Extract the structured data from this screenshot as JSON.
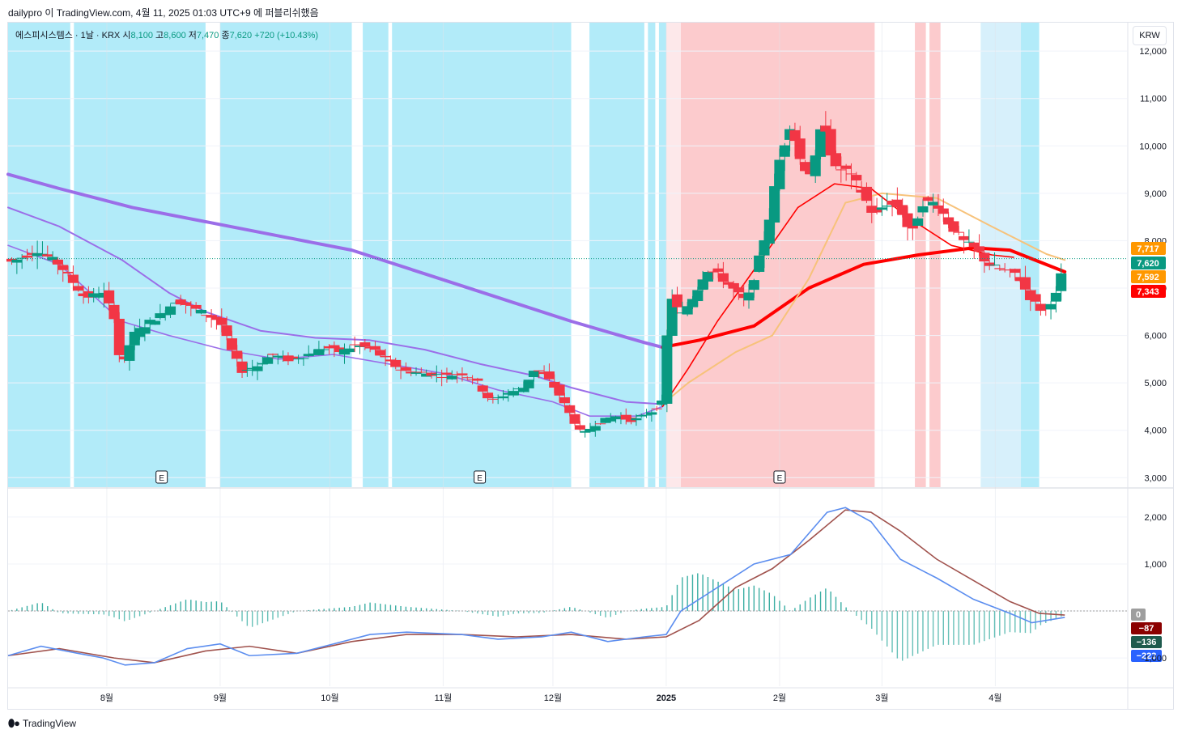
{
  "header": {
    "publisher": "dailypro",
    "text": "dailypro 이 TradingView.com, 4월 11, 2025 01:03 UTC+9 에 퍼블리쉬했음"
  },
  "legend": {
    "symbol": "에스피시스템스 · 1날 · KRX",
    "open_label": "시",
    "open": "8,100",
    "high_label": "고",
    "high": "8,600",
    "low_label": "저",
    "low": "7,470",
    "close_label": "종",
    "close": "7,620",
    "change": "+720 (+10.43%)"
  },
  "currency_button": "KRW",
  "footer": {
    "brand": "TradingView",
    "logo": "tradingview-logo-icon"
  },
  "colors": {
    "up": "#089981",
    "down": "#f23645",
    "bg_blue": "#b2ebf9",
    "bg_lightblue": "#d7f0fb",
    "bg_red": "#fccbcd",
    "bg_pink": "#fde8ea",
    "ma_purple": "#9b6ee8",
    "ma_red": "#ff0000",
    "ma_orange": "#f7c27a",
    "macd": "#5b8def",
    "signal": "#a0524d"
  },
  "chart_data": {
    "type": "candlestick",
    "symbol": "에스피시스템스",
    "x_ticks": [
      {
        "label": "8월",
        "day": 53
      },
      {
        "label": "9월",
        "day": 84
      },
      {
        "label": "10월",
        "day": 114
      },
      {
        "label": "11월",
        "day": 145
      },
      {
        "label": "12월",
        "day": 175
      },
      {
        "label": "2025",
        "day": 206
      },
      {
        "label": "2월",
        "day": 237
      },
      {
        "label": "3월",
        "day": 265
      },
      {
        "label": "4월",
        "day": 296
      }
    ],
    "x_range_days": [
      26,
      332
    ],
    "price_axis": {
      "ticks": [
        3000,
        4000,
        5000,
        6000,
        7000,
        8000,
        9000,
        10000,
        11000,
        12000
      ],
      "range": [
        2800,
        12600
      ]
    },
    "price_tick_labels": [
      "3,000",
      "4,000",
      "5,000",
      "6,000",
      "7,000",
      "8,000",
      "9,000",
      "10,000",
      "11,000",
      "12,000"
    ],
    "price_badges": [
      {
        "label": "7,717",
        "value": 7717,
        "color": "#ff9800"
      },
      {
        "label": "7,620",
        "value": 7620,
        "color": "#089981"
      },
      {
        "label": "7,592",
        "value": 7592,
        "color": "#ff9800"
      },
      {
        "label": "7,343",
        "value": 7343,
        "color": "#ff0000"
      }
    ],
    "last_price": 7620,
    "price_points": [
      [
        27,
        7550
      ],
      [
        34,
        7800
      ],
      [
        40,
        7500
      ],
      [
        47,
        6800
      ],
      [
        52,
        6900
      ],
      [
        55,
        6400
      ],
      [
        57,
        5250
      ],
      [
        60,
        6000
      ],
      [
        64,
        6250
      ],
      [
        68,
        6450
      ],
      [
        72,
        6750
      ],
      [
        76,
        6600
      ],
      [
        80,
        6450
      ],
      [
        84,
        6300
      ],
      [
        87,
        5700
      ],
      [
        90,
        5250
      ],
      [
        94,
        5350
      ],
      [
        98,
        5600
      ],
      [
        103,
        5480
      ],
      [
        108,
        5600
      ],
      [
        113,
        5750
      ],
      [
        117,
        5650
      ],
      [
        121,
        5800
      ],
      [
        126,
        5700
      ],
      [
        130,
        5450
      ],
      [
        134,
        5250
      ],
      [
        140,
        5200
      ],
      [
        146,
        5150
      ],
      [
        150,
        5200
      ],
      [
        154,
        5050
      ],
      [
        158,
        4600
      ],
      [
        163,
        4800
      ],
      [
        167,
        4900
      ],
      [
        170,
        5300
      ],
      [
        173,
        5150
      ],
      [
        176,
        4850
      ],
      [
        180,
        4300
      ],
      [
        183,
        3900
      ],
      [
        187,
        4150
      ],
      [
        192,
        4300
      ],
      [
        197,
        4200
      ],
      [
        202,
        4400
      ],
      [
        205,
        4600
      ],
      [
        207,
        6900
      ],
      [
        210,
        6400
      ],
      [
        214,
        6900
      ],
      [
        217,
        7400
      ],
      [
        220,
        7300
      ],
      [
        224,
        7000
      ],
      [
        228,
        6700
      ],
      [
        231,
        7500
      ],
      [
        234,
        8400
      ],
      [
        237,
        9700
      ],
      [
        240,
        10500
      ],
      [
        243,
        9600
      ],
      [
        246,
        9400
      ],
      [
        249,
        10600
      ],
      [
        252,
        9500
      ],
      [
        255,
        9500
      ],
      [
        259,
        9100
      ],
      [
        263,
        8500
      ],
      [
        266,
        8800
      ],
      [
        270,
        8700
      ],
      [
        273,
        8100
      ],
      [
        276,
        8800
      ],
      [
        280,
        8800
      ],
      [
        283,
        8400
      ],
      [
        287,
        8000
      ],
      [
        291,
        7800
      ],
      [
        294,
        7500
      ],
      [
        297,
        7400
      ],
      [
        299,
        7350
      ],
      [
        302,
        7300
      ],
      [
        305,
        6850
      ],
      [
        309,
        6500
      ],
      [
        313,
        6900
      ],
      [
        315,
        7620
      ]
    ],
    "volume_note": "candles rendered from price_points",
    "background_bands": [
      {
        "from": 26,
        "to": 43,
        "color": "bg_blue"
      },
      {
        "from": 44,
        "to": 80,
        "color": "bg_blue"
      },
      {
        "from": 84,
        "to": 120,
        "color": "bg_blue"
      },
      {
        "from": 123,
        "to": 130,
        "color": "bg_blue"
      },
      {
        "from": 131,
        "to": 180,
        "color": "bg_blue"
      },
      {
        "from": 185,
        "to": 200,
        "color": "bg_blue"
      },
      {
        "from": 201,
        "to": 203,
        "color": "bg_blue"
      },
      {
        "from": 204,
        "to": 206,
        "color": "bg_blue"
      },
      {
        "from": 206,
        "to": 210,
        "color": "bg_pink"
      },
      {
        "from": 210,
        "to": 263,
        "color": "bg_red"
      },
      {
        "from": 274,
        "to": 277,
        "color": "bg_red"
      },
      {
        "from": 278,
        "to": 281,
        "color": "bg_red"
      },
      {
        "from": 292,
        "to": 303,
        "color": "bg_lightblue"
      },
      {
        "from": 303,
        "to": 308,
        "color": "bg_blue"
      }
    ],
    "earnings_markers": [
      {
        "day": 68,
        "label": "E"
      },
      {
        "day": 155,
        "label": "E"
      },
      {
        "day": 237,
        "label": "E"
      }
    ],
    "moving_averages": [
      {
        "name": "MA-long",
        "color": "ma_purple",
        "points": [
          [
            26,
            9400
          ],
          [
            40,
            9100
          ],
          [
            60,
            8700
          ],
          [
            80,
            8400
          ],
          [
            100,
            8100
          ],
          [
            120,
            7800
          ],
          [
            140,
            7300
          ],
          [
            160,
            6800
          ],
          [
            180,
            6300
          ],
          [
            200,
            5850
          ],
          [
            205,
            5750
          ]
        ]
      },
      {
        "name": "MA-long-red",
        "color": "ma_red",
        "points": [
          [
            205,
            5750
          ],
          [
            215,
            5900
          ],
          [
            230,
            6200
          ],
          [
            245,
            7000
          ],
          [
            260,
            7500
          ],
          [
            275,
            7700
          ],
          [
            290,
            7850
          ],
          [
            300,
            7800
          ],
          [
            315,
            7343
          ]
        ]
      },
      {
        "name": "MA-mid",
        "color": "ma_purple",
        "points": [
          [
            26,
            8700
          ],
          [
            40,
            8300
          ],
          [
            57,
            7600
          ],
          [
            70,
            6900
          ],
          [
            80,
            6500
          ],
          [
            95,
            6100
          ],
          [
            110,
            5950
          ],
          [
            125,
            5900
          ],
          [
            140,
            5700
          ],
          [
            155,
            5400
          ],
          [
            170,
            5150
          ],
          [
            180,
            4900
          ],
          [
            195,
            4600
          ],
          [
            205,
            4550
          ]
        ]
      },
      {
        "name": "MA-mid-orange",
        "color": "ma_orange",
        "points": [
          [
            205,
            4550
          ],
          [
            212,
            5000
          ],
          [
            225,
            5650
          ],
          [
            235,
            6000
          ],
          [
            245,
            7200
          ],
          [
            255,
            8800
          ],
          [
            265,
            9000
          ],
          [
            280,
            8900
          ],
          [
            295,
            8300
          ],
          [
            310,
            7717
          ],
          [
            315,
            7592
          ]
        ]
      },
      {
        "name": "MA-short",
        "color": "ma_purple",
        "points": [
          [
            26,
            7900
          ],
          [
            40,
            7500
          ],
          [
            57,
            6300
          ],
          [
            70,
            6000
          ],
          [
            85,
            5700
          ],
          [
            100,
            5500
          ],
          [
            115,
            5600
          ],
          [
            130,
            5400
          ],
          [
            145,
            5200
          ],
          [
            160,
            4850
          ],
          [
            175,
            4600
          ],
          [
            185,
            4300
          ],
          [
            198,
            4300
          ],
          [
            205,
            4500
          ]
        ]
      },
      {
        "name": "MA-short-red",
        "color": "ma_red",
        "points": [
          [
            205,
            4500
          ],
          [
            212,
            5300
          ],
          [
            220,
            6300
          ],
          [
            232,
            7600
          ],
          [
            242,
            8700
          ],
          [
            252,
            9200
          ],
          [
            262,
            9100
          ],
          [
            272,
            8500
          ],
          [
            284,
            7900
          ],
          [
            295,
            7700
          ],
          [
            301,
            7650
          ]
        ]
      }
    ],
    "macd_panel": {
      "axis_ticks": [
        -1000,
        0,
        1000,
        2000
      ],
      "axis_tick_labels": [
        "-1,000",
        "0",
        "1,000",
        "2,000"
      ],
      "range": [
        -1600,
        2600
      ],
      "macd_points": [
        [
          26,
          -950
        ],
        [
          35,
          -750
        ],
        [
          45,
          -900
        ],
        [
          52,
          -1000
        ],
        [
          58,
          -1150
        ],
        [
          66,
          -1100
        ],
        [
          75,
          -800
        ],
        [
          84,
          -700
        ],
        [
          92,
          -950
        ],
        [
          105,
          -900
        ],
        [
          115,
          -700
        ],
        [
          125,
          -500
        ],
        [
          135,
          -450
        ],
        [
          150,
          -500
        ],
        [
          160,
          -600
        ],
        [
          172,
          -550
        ],
        [
          180,
          -450
        ],
        [
          190,
          -650
        ],
        [
          200,
          -550
        ],
        [
          206,
          -500
        ],
        [
          210,
          0
        ],
        [
          220,
          500
        ],
        [
          230,
          1000
        ],
        [
          240,
          1200
        ],
        [
          250,
          2100
        ],
        [
          255,
          2200
        ],
        [
          262,
          1900
        ],
        [
          270,
          1100
        ],
        [
          280,
          700
        ],
        [
          290,
          250
        ],
        [
          300,
          -50
        ],
        [
          306,
          -250
        ],
        [
          315,
          -136
        ]
      ],
      "signal_points": [
        [
          26,
          -950
        ],
        [
          40,
          -800
        ],
        [
          55,
          -1000
        ],
        [
          66,
          -1100
        ],
        [
          80,
          -850
        ],
        [
          92,
          -750
        ],
        [
          105,
          -900
        ],
        [
          120,
          -650
        ],
        [
          135,
          -500
        ],
        [
          150,
          -500
        ],
        [
          165,
          -550
        ],
        [
          180,
          -500
        ],
        [
          195,
          -600
        ],
        [
          206,
          -550
        ],
        [
          215,
          -200
        ],
        [
          225,
          500
        ],
        [
          235,
          900
        ],
        [
          245,
          1500
        ],
        [
          255,
          2150
        ],
        [
          262,
          2100
        ],
        [
          270,
          1700
        ],
        [
          280,
          1100
        ],
        [
          290,
          650
        ],
        [
          300,
          200
        ],
        [
          308,
          -50
        ],
        [
          315,
          -87
        ]
      ],
      "badges": [
        {
          "label": "0",
          "value": 0,
          "color": "#9e9e9e"
        },
        {
          "label": "−87",
          "value": -87,
          "color": "#8b0000"
        },
        {
          "label": "−136",
          "value": -136,
          "color": "#1e5a4d"
        },
        {
          "label": "−223",
          "value": -223,
          "color": "#2962ff"
        }
      ]
    }
  }
}
